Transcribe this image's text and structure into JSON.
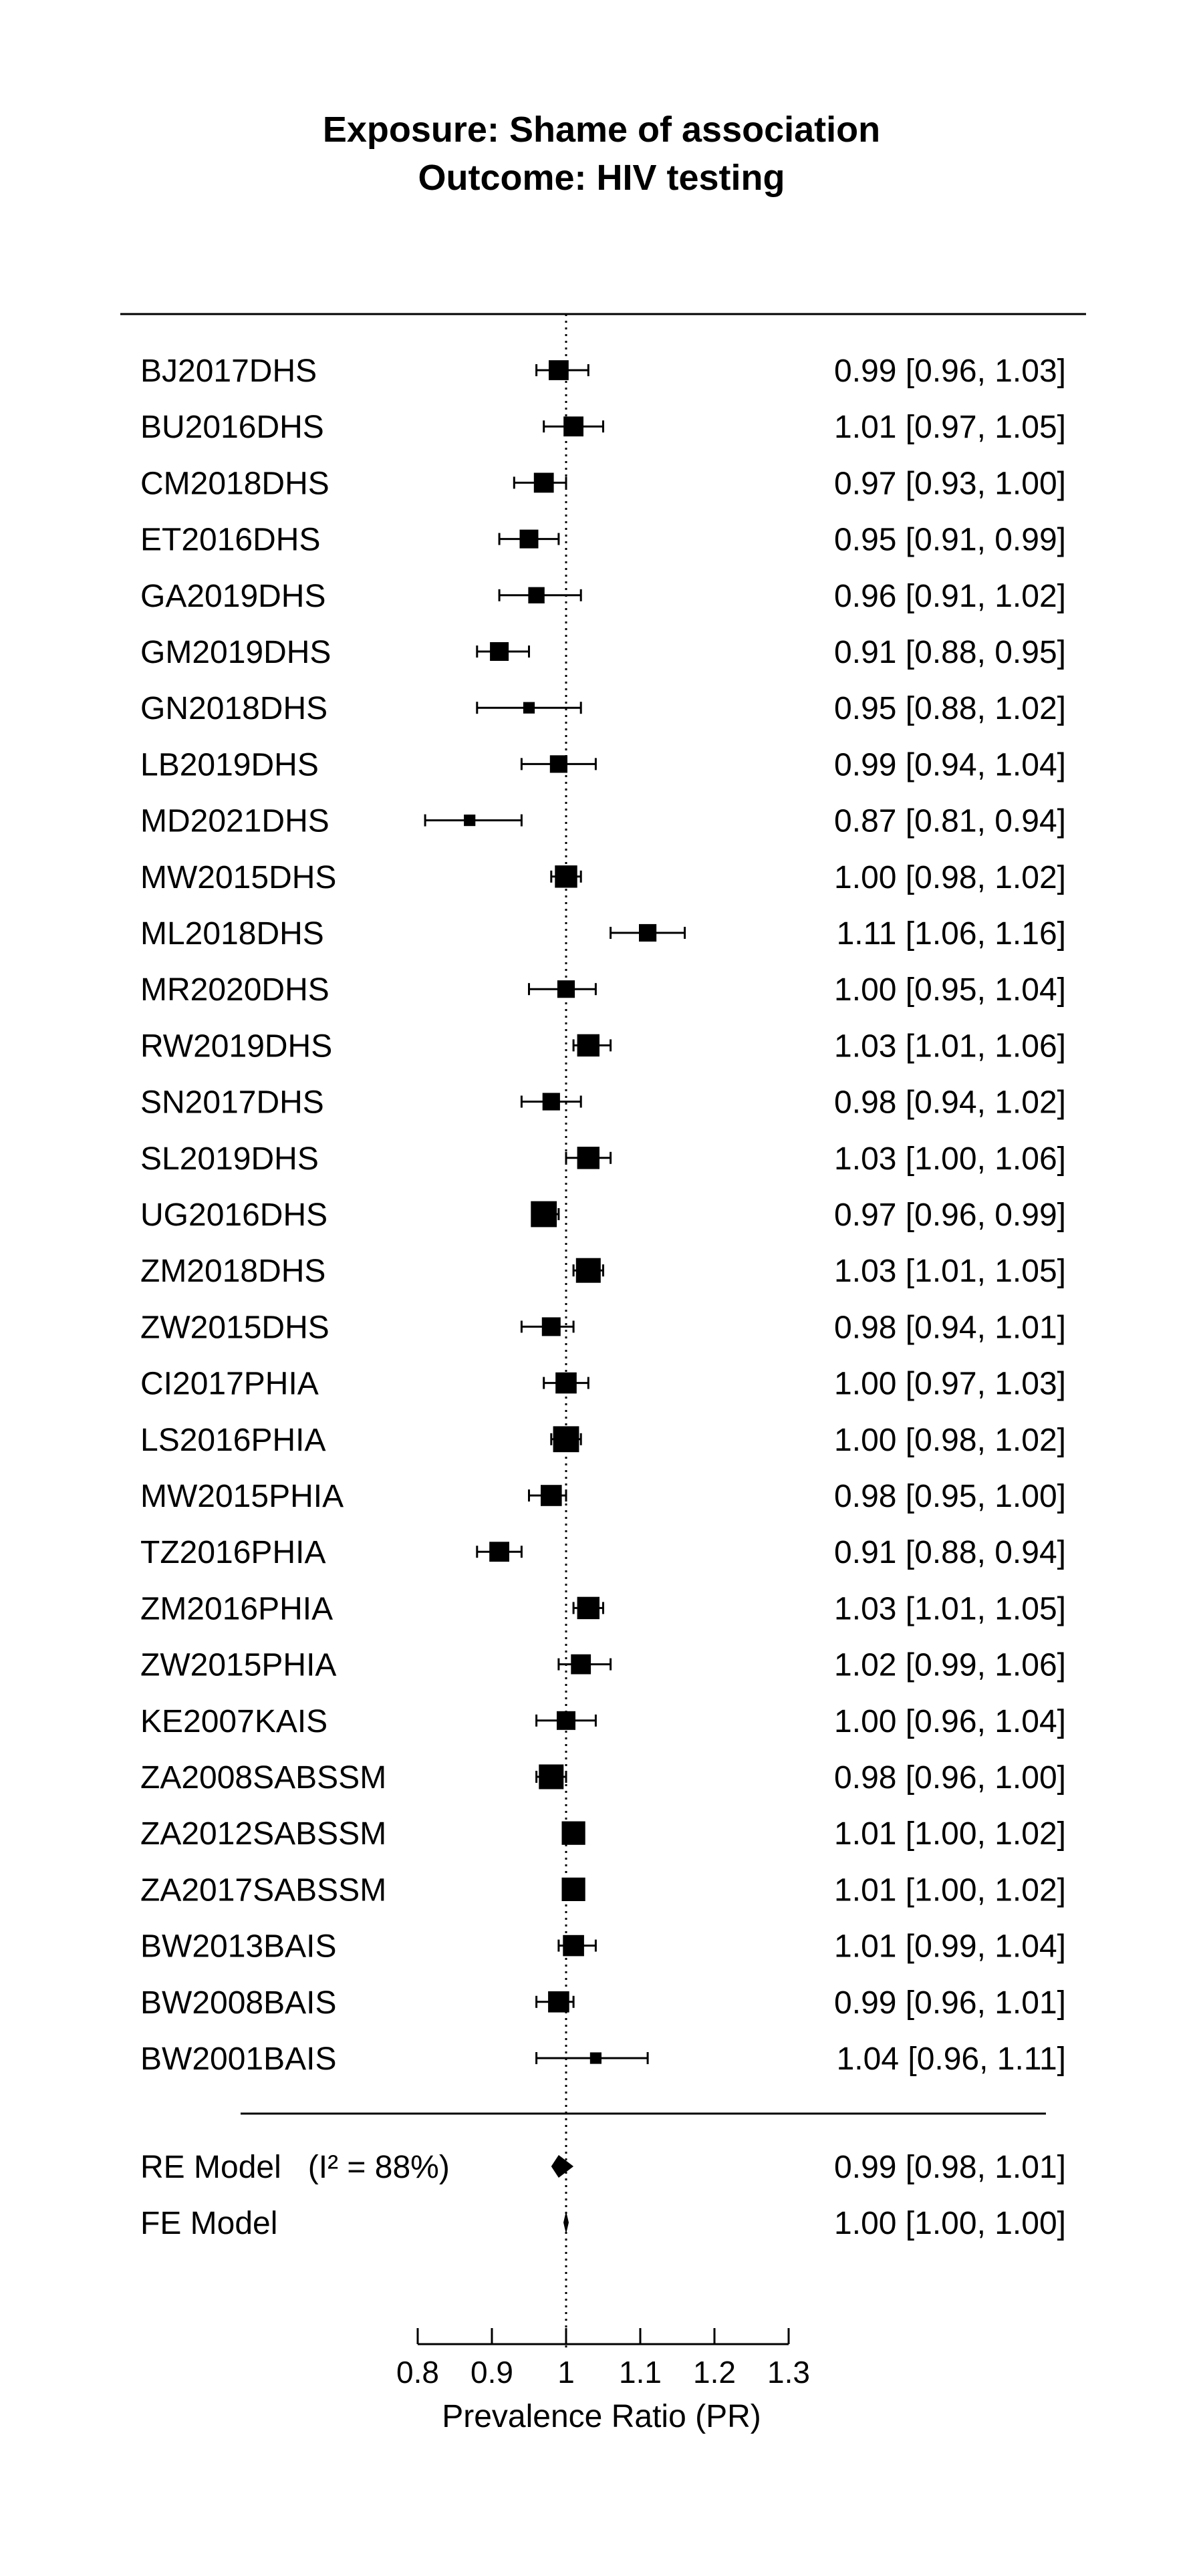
{
  "chart_data": {
    "type": "forest",
    "title": [
      "Exposure: Shame of association",
      "Outcome: HIV testing"
    ],
    "xlabel": "Prevalence Ratio (PR)",
    "xlim": [
      0.8,
      1.3
    ],
    "xticks": [
      0.8,
      0.9,
      1,
      1.1,
      1.2,
      1.3
    ],
    "xtick_labels": [
      "0.8",
      "0.9",
      "1",
      "1.1",
      "1.2",
      "1.3"
    ],
    "reference_line": 1,
    "studies": [
      {
        "label": "BJ2017DHS",
        "est": 0.99,
        "lo": 0.96,
        "hi": 1.03,
        "text": "0.99 [0.96, 1.03]",
        "size": 0.55
      },
      {
        "label": "BU2016DHS",
        "est": 1.01,
        "lo": 0.97,
        "hi": 1.05,
        "text": "1.01 [0.97, 1.05]",
        "size": 0.55
      },
      {
        "label": "CM2018DHS",
        "est": 0.97,
        "lo": 0.93,
        "hi": 1.0,
        "text": "0.97 [0.93, 1.00]",
        "size": 0.55
      },
      {
        "label": "ET2016DHS",
        "est": 0.95,
        "lo": 0.91,
        "hi": 0.99,
        "text": "0.95 [0.91, 0.99]",
        "size": 0.5
      },
      {
        "label": "GA2019DHS",
        "est": 0.96,
        "lo": 0.91,
        "hi": 1.02,
        "text": "0.96 [0.91, 1.02]",
        "size": 0.4
      },
      {
        "label": "GM2019DHS",
        "est": 0.91,
        "lo": 0.88,
        "hi": 0.95,
        "text": "0.91 [0.88, 0.95]",
        "size": 0.5
      },
      {
        "label": "GN2018DHS",
        "est": 0.95,
        "lo": 0.88,
        "hi": 1.02,
        "text": "0.95 [0.88, 1.02]",
        "size": 0.2
      },
      {
        "label": "LB2019DHS",
        "est": 0.99,
        "lo": 0.94,
        "hi": 1.04,
        "text": "0.99 [0.94, 1.04]",
        "size": 0.45
      },
      {
        "label": "MD2021DHS",
        "est": 0.87,
        "lo": 0.81,
        "hi": 0.94,
        "text": "0.87 [0.81, 0.94]",
        "size": 0.2
      },
      {
        "label": "MW2015DHS",
        "est": 1.0,
        "lo": 0.98,
        "hi": 1.02,
        "text": "1.00 [0.98, 1.02]",
        "size": 0.65
      },
      {
        "label": "ML2018DHS",
        "est": 1.11,
        "lo": 1.06,
        "hi": 1.16,
        "text": "1.11 [1.06, 1.16]",
        "size": 0.45
      },
      {
        "label": "MR2020DHS",
        "est": 1.0,
        "lo": 0.95,
        "hi": 1.04,
        "text": "1.00 [0.95, 1.04]",
        "size": 0.45
      },
      {
        "label": "RW2019DHS",
        "est": 1.03,
        "lo": 1.01,
        "hi": 1.06,
        "text": "1.03 [1.01, 1.06]",
        "size": 0.65
      },
      {
        "label": "SN2017DHS",
        "est": 0.98,
        "lo": 0.94,
        "hi": 1.02,
        "text": "0.98 [0.94, 1.02]",
        "size": 0.45
      },
      {
        "label": "SL2019DHS",
        "est": 1.03,
        "lo": 1.0,
        "hi": 1.06,
        "text": "1.03 [1.00, 1.06]",
        "size": 0.65
      },
      {
        "label": "UG2016DHS",
        "est": 0.97,
        "lo": 0.96,
        "hi": 0.99,
        "text": "0.97 [0.96, 0.99]",
        "size": 0.8
      },
      {
        "label": "ZM2018DHS",
        "est": 1.03,
        "lo": 1.01,
        "hi": 1.05,
        "text": "1.03 [1.01, 1.05]",
        "size": 0.75
      },
      {
        "label": "ZW2015DHS",
        "est": 0.98,
        "lo": 0.94,
        "hi": 1.01,
        "text": "0.98 [0.94, 1.01]",
        "size": 0.5
      },
      {
        "label": "CI2017PHIA",
        "est": 1.0,
        "lo": 0.97,
        "hi": 1.03,
        "text": "1.00 [0.97, 1.03]",
        "size": 0.6
      },
      {
        "label": "LS2016PHIA",
        "est": 1.0,
        "lo": 0.98,
        "hi": 1.02,
        "text": "1.00 [0.98, 1.02]",
        "size": 0.8
      },
      {
        "label": "MW2015PHIA",
        "est": 0.98,
        "lo": 0.95,
        "hi": 1.0,
        "text": "0.98 [0.95, 1.00]",
        "size": 0.6
      },
      {
        "label": "TZ2016PHIA",
        "est": 0.91,
        "lo": 0.88,
        "hi": 0.94,
        "text": "0.91 [0.88, 0.94]",
        "size": 0.55
      },
      {
        "label": "ZM2016PHIA",
        "est": 1.03,
        "lo": 1.01,
        "hi": 1.05,
        "text": "1.03 [1.01, 1.05]",
        "size": 0.65
      },
      {
        "label": "ZW2015PHIA",
        "est": 1.02,
        "lo": 0.99,
        "hi": 1.06,
        "text": "1.02 [0.99, 1.06]",
        "size": 0.55
      },
      {
        "label": "KE2007KAIS",
        "est": 1.0,
        "lo": 0.96,
        "hi": 1.04,
        "text": "1.00 [0.96, 1.04]",
        "size": 0.5
      },
      {
        "label": "ZA2008SABSSM",
        "est": 0.98,
        "lo": 0.96,
        "hi": 1.0,
        "text": "0.98 [0.96, 1.00]",
        "size": 0.75
      },
      {
        "label": "ZA2012SABSSM",
        "est": 1.01,
        "lo": 1.0,
        "hi": 1.02,
        "text": "1.01 [1.00, 1.02]",
        "size": 0.7
      },
      {
        "label": "ZA2017SABSSM",
        "est": 1.01,
        "lo": 1.0,
        "hi": 1.02,
        "text": "1.01 [1.00, 1.02]",
        "size": 0.7
      },
      {
        "label": "BW2013BAIS",
        "est": 1.01,
        "lo": 0.99,
        "hi": 1.04,
        "text": "1.01 [0.99, 1.04]",
        "size": 0.6
      },
      {
        "label": "BW2008BAIS",
        "est": 0.99,
        "lo": 0.96,
        "hi": 1.01,
        "text": "0.99 [0.96, 1.01]",
        "size": 0.6
      },
      {
        "label": "BW2001BAIS",
        "est": 1.04,
        "lo": 0.96,
        "hi": 1.11,
        "text": "1.04 [0.96, 1.11]",
        "size": 0.2
      }
    ],
    "summaries": [
      {
        "label": "RE Model   (I² = 88%)",
        "est": 0.99,
        "lo": 0.98,
        "hi": 1.01,
        "text": "0.99 [0.98, 1.01]",
        "kind": "random-effects"
      },
      {
        "label": "FE Model",
        "est": 1.0,
        "lo": 1.0,
        "hi": 1.0,
        "text": "1.00 [1.00, 1.00]",
        "kind": "fixed-effect"
      }
    ]
  }
}
